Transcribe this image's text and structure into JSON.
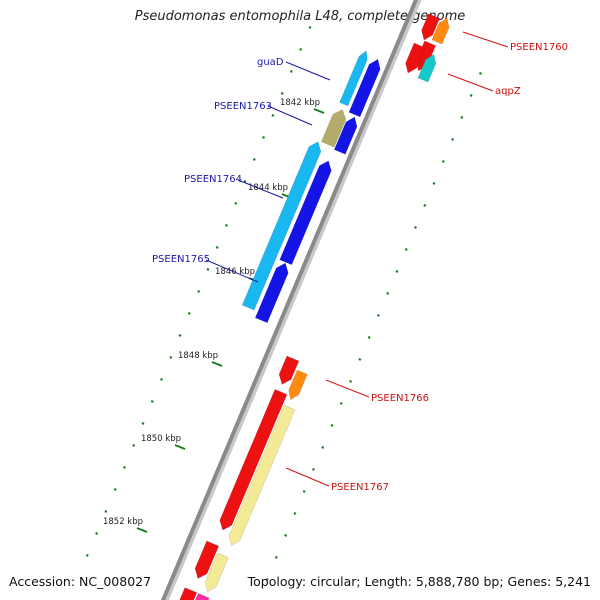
{
  "title": "Pseudomonas entomophila L48, complete genome",
  "footer": {
    "accession": "Accession: NC_008027",
    "topology": "Topology: circular; Length: 5,888,780 bp; Genes: 5,241"
  },
  "colors": {
    "backbone": "#8a8a8a",
    "tick": "#1f7a1f",
    "label_blue": "#1a1aa6",
    "label_red": "#cc1111",
    "gene_red": "#ee1111",
    "gene_blue": "#1414e6",
    "gene_cyan": "#1ab8f0",
    "gene_yellow": "#f2ea96",
    "gene_olive": "#b4ac6a",
    "gene_orange": "#ff8a10",
    "gene_teal": "#18c8c8",
    "gene_pink": "#ff2aa8"
  },
  "ruler": [
    {
      "label": "1842 kbp"
    },
    {
      "label": "1844 kbp"
    },
    {
      "label": "1846 kbp"
    },
    {
      "label": "1848 kbp"
    },
    {
      "label": "1850 kbp"
    },
    {
      "label": "1852 kbp"
    }
  ],
  "genes": [
    {
      "name": "guaD",
      "strand": "minus",
      "color": "cyan",
      "labeled": true
    },
    {
      "name": "",
      "strand": "minus",
      "color": "olive",
      "labeled": false
    },
    {
      "name": "PSEEN1763",
      "strand": "minus",
      "color": "olive",
      "labeled": true
    },
    {
      "name": "PSEEN1764",
      "strand": "minus",
      "color": "cyan",
      "labeled": true
    },
    {
      "name": "PSEEN1765",
      "strand": "minus",
      "color": "cyan",
      "labeled": true
    },
    {
      "name": "",
      "strand": "minus",
      "color": "blue",
      "labeled": false
    },
    {
      "name": "PSEEN1760",
      "strand": "plus",
      "color": "orange",
      "labeled": true
    },
    {
      "name": "aqpZ",
      "strand": "plus",
      "color": "teal",
      "labeled": true
    },
    {
      "name": "PSEEN1766",
      "strand": "plus",
      "color": "orange",
      "labeled": true
    },
    {
      "name": "PSEEN1767",
      "strand": "plus",
      "color": "yellow",
      "labeled": true
    },
    {
      "name": "",
      "strand": "plus",
      "color": "yellow",
      "labeled": false
    },
    {
      "name": "",
      "strand": "plus",
      "color": "pink",
      "labeled": false
    }
  ]
}
